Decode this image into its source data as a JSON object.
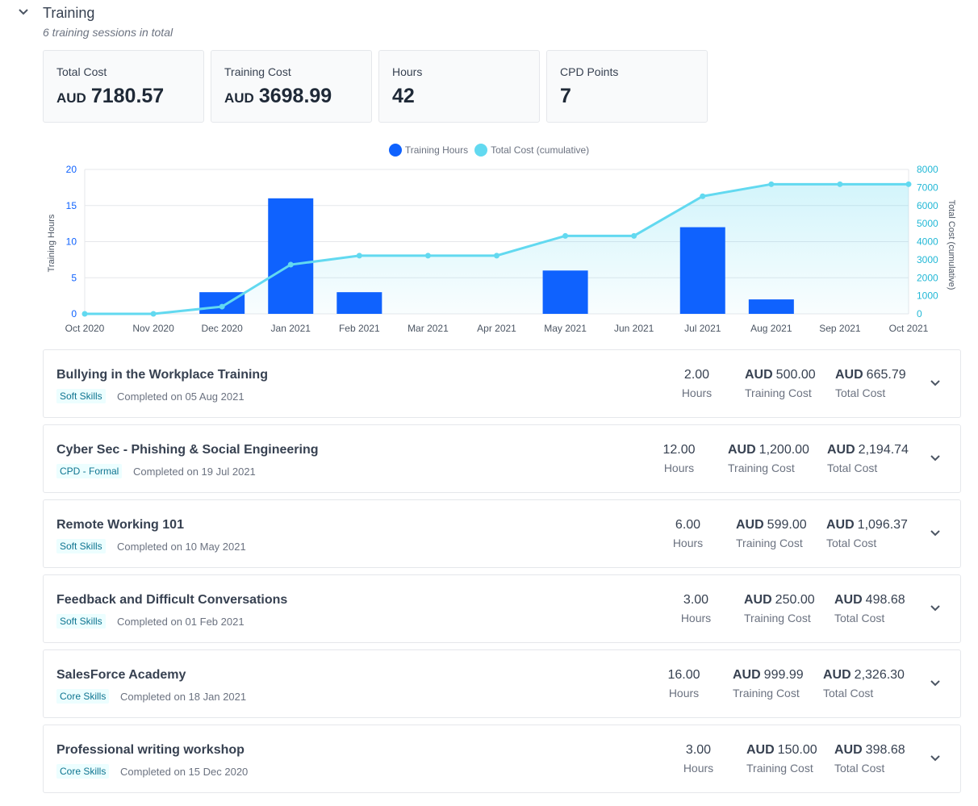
{
  "section": {
    "title": "Training",
    "subtitle": "6 training sessions in total"
  },
  "stats": [
    {
      "label": "Total Cost",
      "currency": "AUD",
      "value": "7180.57"
    },
    {
      "label": "Training Cost",
      "currency": "AUD",
      "value": "3698.99"
    },
    {
      "label": "Hours",
      "currency": "",
      "value": "42"
    },
    {
      "label": "CPD Points",
      "currency": "",
      "value": "7"
    }
  ],
  "chart_data": {
    "type": "bar",
    "categories": [
      "Oct 2020",
      "Nov 2020",
      "Dec 2020",
      "Jan 2021",
      "Feb 2021",
      "Mar 2021",
      "Apr 2021",
      "May 2021",
      "Jun 2021",
      "Jul 2021",
      "Aug 2021",
      "Sep 2021",
      "Oct 2021"
    ],
    "series": [
      {
        "name": "Training Hours",
        "type": "bar",
        "axis": "left",
        "color": "#0f62fe",
        "values": [
          0,
          0,
          3,
          16,
          3,
          0,
          0,
          6,
          0,
          12,
          2,
          0,
          0
        ]
      },
      {
        "name": "Total Cost (cumulative)",
        "type": "area-line",
        "axis": "right",
        "color": "#62d9f0",
        "values": [
          0,
          0,
          399,
          2725,
          3224,
          3224,
          3224,
          4320,
          4320,
          6515,
          7181,
          7181,
          7181
        ]
      }
    ],
    "ylabel": "Training Hours",
    "y2label": "Total Cost (cumulative)",
    "ylim": [
      0,
      20
    ],
    "y2lim": [
      0,
      8000
    ],
    "yticks": [
      0,
      5,
      10,
      15,
      20
    ],
    "y2ticks": [
      0,
      1000,
      2000,
      3000,
      4000,
      5000,
      6000,
      7000,
      8000
    ],
    "legend": "top-center",
    "grid": true
  },
  "sessions": [
    {
      "title": "Bullying in the Workplace Training",
      "tag": "Soft Skills",
      "date": "Completed on 05 Aug 2021",
      "hours": "2.00",
      "hours_label": "Hours",
      "cur1": "AUD",
      "training_cost": "500.00",
      "training_label": "Training Cost",
      "cur2": "AUD",
      "total_cost": "665.79",
      "total_label": "Total Cost"
    },
    {
      "title": "Cyber Sec - Phishing & Social Engineering",
      "tag": "CPD - Formal",
      "date": "Completed on 19 Jul 2021",
      "hours": "12.00",
      "hours_label": "Hours",
      "cur1": "AUD",
      "training_cost": "1,200.00",
      "training_label": "Training Cost",
      "cur2": "AUD",
      "total_cost": "2,194.74",
      "total_label": "Total Cost"
    },
    {
      "title": "Remote Working 101",
      "tag": "Soft Skills",
      "date": "Completed on 10 May 2021",
      "hours": "6.00",
      "hours_label": "Hours",
      "cur1": "AUD",
      "training_cost": "599.00",
      "training_label": "Training Cost",
      "cur2": "AUD",
      "total_cost": "1,096.37",
      "total_label": "Total Cost"
    },
    {
      "title": "Feedback and Difficult Conversations",
      "tag": "Soft Skills",
      "date": "Completed on 01 Feb 2021",
      "hours": "3.00",
      "hours_label": "Hours",
      "cur1": "AUD",
      "training_cost": "250.00",
      "training_label": "Training Cost",
      "cur2": "AUD",
      "total_cost": "498.68",
      "total_label": "Total Cost"
    },
    {
      "title": "SalesForce Academy",
      "tag": "Core Skills",
      "date": "Completed on 18 Jan 2021",
      "hours": "16.00",
      "hours_label": "Hours",
      "cur1": "AUD",
      "training_cost": "999.99",
      "training_label": "Training Cost",
      "cur2": "AUD",
      "total_cost": "2,326.30",
      "total_label": "Total Cost"
    },
    {
      "title": "Professional writing workshop",
      "tag": "Core Skills",
      "date": "Completed on 15 Dec 2020",
      "hours": "3.00",
      "hours_label": "Hours",
      "cur1": "AUD",
      "training_cost": "150.00",
      "training_label": "Training Cost",
      "cur2": "AUD",
      "total_cost": "398.68",
      "total_label": "Total Cost"
    }
  ],
  "icons": {
    "toggle": "chevron-down-icon",
    "row_expand": "chevron-down-icon"
  },
  "colors": {
    "bar": "#0f62fe",
    "line": "#62d9f0",
    "tag_bg": "#ecfeff",
    "tag_text": "#0e7490"
  }
}
